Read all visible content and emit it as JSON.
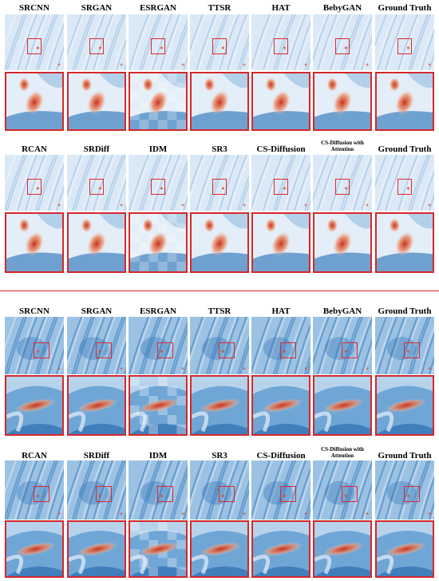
{
  "top_panel": {
    "row1_labels": [
      "SRCNN",
      "SRGAN",
      "ESRGAN",
      "TTSR",
      "HAT",
      "BebyGAN",
      "Ground Truth"
    ],
    "row2_labels": [
      "RCAN",
      "SRDiff",
      "IDM",
      "SR3",
      "CS-Diffusion",
      "CS-Diffusion with Attention",
      "Ground Truth"
    ]
  },
  "bottom_panel": {
    "row1_labels": [
      "SRCNN",
      "SRGAN",
      "ESRGAN",
      "TTSR",
      "HAT",
      "BebyGAN",
      "Ground Truth"
    ],
    "row2_labels": [
      "RCAN",
      "SRDiff",
      "IDM",
      "SR3",
      "CS-Diffusion",
      "CS-Diffusion with Attention",
      "Ground Truth"
    ]
  },
  "colors": {
    "highlight_box": "#e0282c",
    "divider": "#d6272a",
    "top_scene_base": "#dbe9f6",
    "bottom_scene_base": "#9cc2e3",
    "hot_spot": "#d8452a"
  }
}
